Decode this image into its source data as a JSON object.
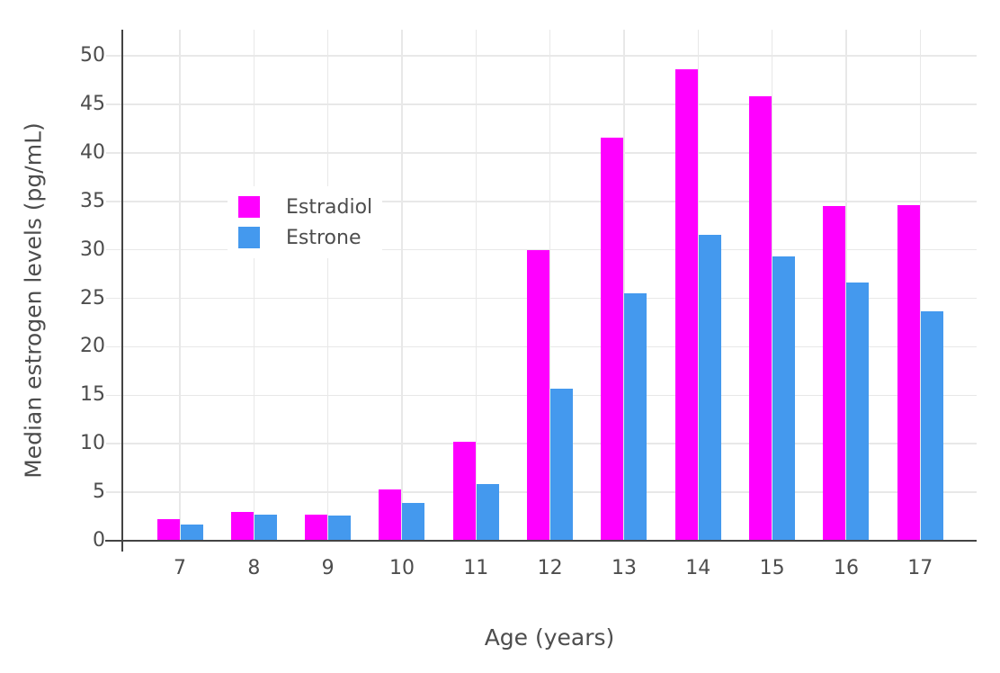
{
  "chart_data": {
    "type": "bar",
    "title": "",
    "xlabel": "Age (years)",
    "ylabel": "Median estrogen levels (pg/mL)",
    "categories": [
      7,
      8,
      9,
      10,
      11,
      12,
      13,
      14,
      15,
      16,
      17
    ],
    "x_tick_labels": [
      "7",
      "8",
      "9",
      "10",
      "11",
      "12",
      "13",
      "14",
      "15",
      "16",
      "17"
    ],
    "series": [
      {
        "name": "Estradiol",
        "color": "#ff00ff",
        "values": [
          2.2,
          3.0,
          2.7,
          5.3,
          10.2,
          30.0,
          41.6,
          48.6,
          45.8,
          34.5,
          34.6
        ]
      },
      {
        "name": "Estrone",
        "color": "#4499ee",
        "values": [
          1.7,
          2.7,
          2.6,
          3.9,
          5.8,
          15.7,
          25.5,
          31.5,
          29.3,
          26.6,
          23.7
        ]
      }
    ],
    "ylim": [
      0,
      52.7
    ],
    "yticks": [
      0,
      5,
      10,
      15,
      20,
      25,
      30,
      35,
      40,
      45,
      50
    ],
    "grid": true,
    "legend_position": "inside-top-left",
    "colors": {
      "axis": "#444444",
      "grid": "#e8e8e8",
      "text": "#4d4d4d",
      "background": "#ffffff"
    }
  }
}
